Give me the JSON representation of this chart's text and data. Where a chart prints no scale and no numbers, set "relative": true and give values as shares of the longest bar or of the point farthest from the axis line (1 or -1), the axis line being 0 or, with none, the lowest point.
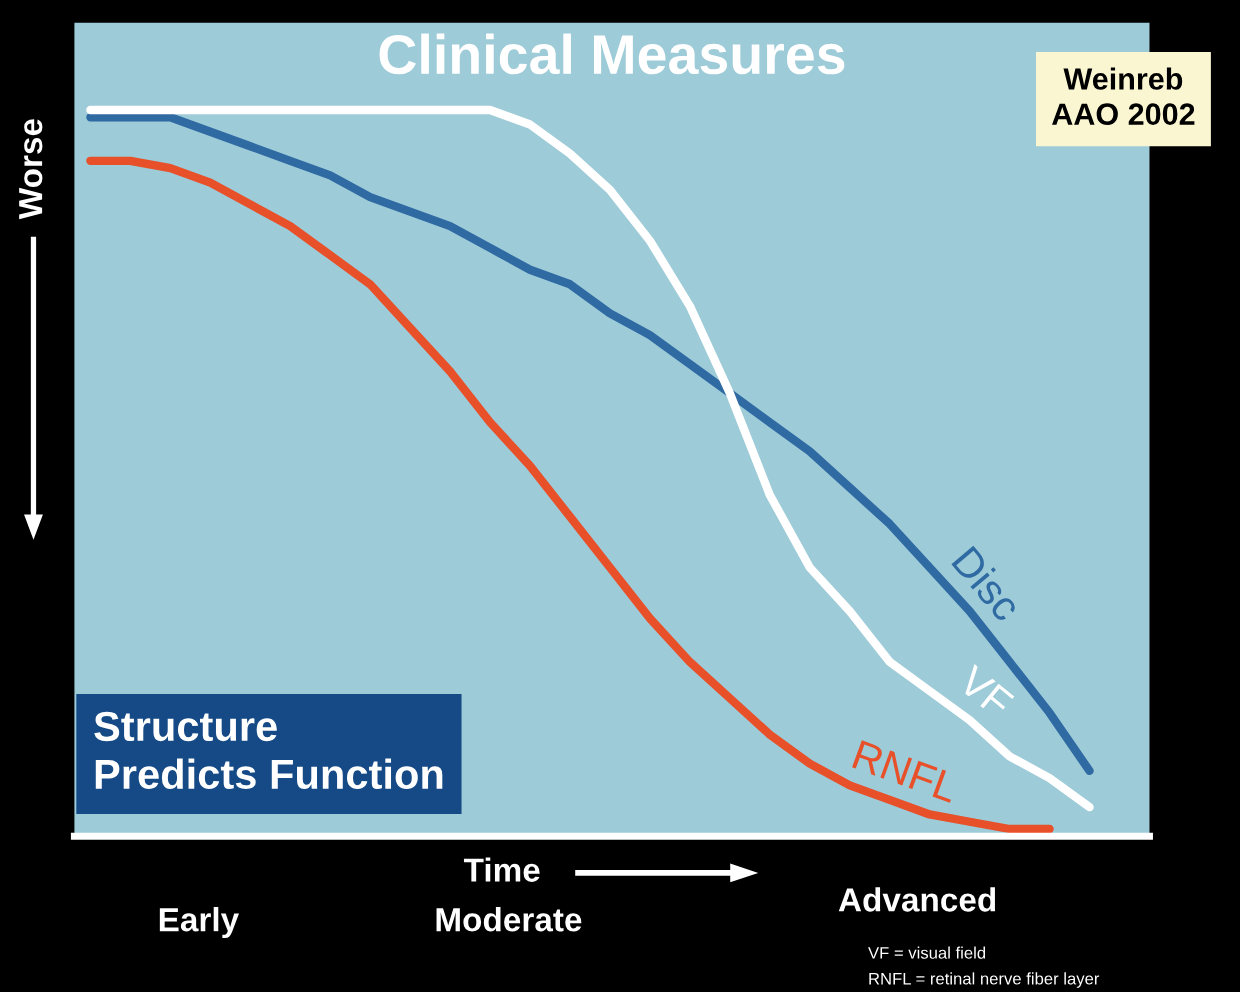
{
  "chart_data": {
    "type": "line",
    "relative": true,
    "title": "Clinical Measures",
    "ylabel": "Worse",
    "xlabel": "Time",
    "categories": [
      null,
      null,
      null,
      null,
      null,
      null,
      null,
      null,
      null,
      null,
      null,
      null,
      null,
      null,
      null,
      null,
      null,
      null,
      null,
      null,
      null,
      null,
      null,
      null,
      null,
      null
    ],
    "series": [
      {
        "name": "Disc",
        "color": "#2f6aa3",
        "values": [
          0.99,
          0.99,
          0.99,
          0.97,
          0.95,
          0.93,
          0.91,
          0.88,
          0.86,
          0.84,
          0.81,
          0.78,
          0.76,
          0.72,
          0.69,
          0.65,
          0.61,
          0.57,
          0.53,
          0.48,
          0.43,
          0.37,
          0.31,
          0.24,
          0.17,
          0.09
        ]
      },
      {
        "name": "VF",
        "color": "#ffffff",
        "values": [
          1.0,
          1.0,
          1.0,
          1.0,
          1.0,
          1.0,
          1.0,
          1.0,
          1.0,
          1.0,
          1.0,
          0.98,
          0.94,
          0.89,
          0.82,
          0.73,
          0.61,
          0.47,
          0.37,
          0.31,
          0.24,
          0.2,
          0.16,
          0.11,
          0.08,
          0.04
        ]
      },
      {
        "name": "RNFL",
        "color": "#e8502a",
        "values": [
          0.93,
          0.93,
          0.92,
          0.9,
          0.87,
          0.84,
          0.8,
          0.76,
          0.7,
          0.64,
          0.57,
          0.51,
          0.44,
          0.37,
          0.3,
          0.24,
          0.19,
          0.14,
          0.1,
          0.07,
          0.05,
          0.03,
          0.02,
          0.01,
          0.01,
          null
        ]
      }
    ],
    "annotations": [
      "Weinreb\nAAO 2002",
      "Structure\nPredicts Function",
      "Early",
      "Moderate",
      "Advanced",
      "VF = visual field",
      "RNFL = retinal nerve fiber layer"
    ],
    "grid": false,
    "legend": false,
    "line_style": "solid",
    "marker": "none"
  }
}
